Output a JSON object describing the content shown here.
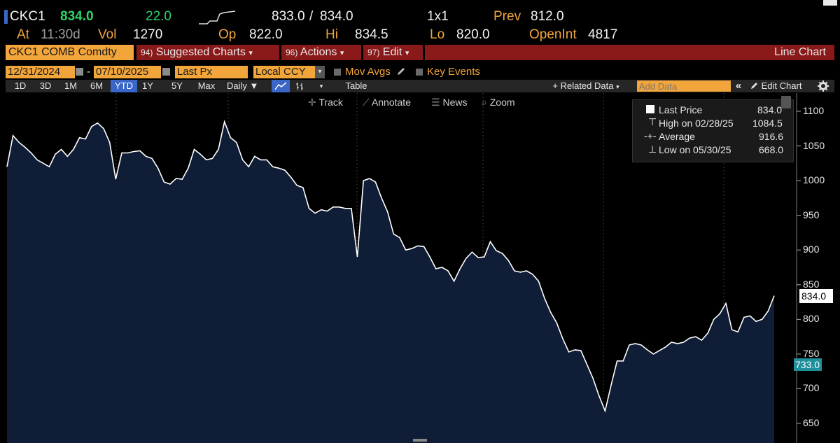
{
  "ticker": {
    "symbol": "CKC1",
    "last": "834.0",
    "change": "22.0",
    "bid_ask_bid": "833.0",
    "bid_ask_sep": "/",
    "bid_ask_ask": "834.0",
    "size": "1x1",
    "prev_label": "Prev",
    "prev_value": "812.0",
    "at_label": "At",
    "at_time": "11:30d",
    "vol_label": "Vol",
    "vol_value": "1270",
    "op_label": "Op",
    "op_value": "822.0",
    "hi_label": "Hi",
    "hi_value": "834.5",
    "lo_label": "Lo",
    "lo_value": "820.0",
    "oi_label": "OpenInt",
    "oi_value": "4817"
  },
  "menubar": {
    "security": "CKC1 COMB Comdty",
    "suggested_num": "94)",
    "suggested": "Suggested Charts",
    "actions_num": "96)",
    "actions": "Actions",
    "edit_num": "97)",
    "edit": "Edit",
    "chart_type": "Line Chart",
    "caret": "▾"
  },
  "controls": {
    "start_date": "12/31/2024",
    "dash": "-",
    "end_date": "07/10/2025",
    "field": "Last Px",
    "currency": "Local CCY",
    "mov_avgs": "Mov Avgs",
    "key_events": "Key Events"
  },
  "periods": [
    "1D",
    "3D",
    "1M",
    "6M",
    "YTD",
    "1Y",
    "5Y",
    "Max"
  ],
  "active_period": "YTD",
  "toolbar2": {
    "frequency": "Daily",
    "table": "Table",
    "related": "+ Related Data",
    "add_data_placeholder": "Add Data",
    "edit_chart": "Edit Chart",
    "double_left": "«"
  },
  "chart_tools": {
    "track": "Track",
    "annotate": "Annotate",
    "news": "News",
    "zoom": "Zoom"
  },
  "legend": {
    "last_label": "Last Price",
    "last_value": "834.0",
    "high_label": "High on 02/28/25",
    "high_value": "1084.5",
    "avg_label": "Average",
    "avg_value": "916.6",
    "low_label": "Low on 05/30/25",
    "low_value": "668.0"
  },
  "badges": {
    "last": "834.0",
    "other": "733.0"
  },
  "colors": {
    "accent_orange": "#f2a53a",
    "change_green": "#2fd26a",
    "menu_red": "#8a1a1a",
    "area_fill": "#0f1d36",
    "line": "#ffffff",
    "badge_teal": "#1f8f9a"
  },
  "chart_data": {
    "type": "area",
    "title": "",
    "xlabel": "",
    "ylabel": "",
    "ylim": [
      630,
      1130
    ],
    "yticks": [
      650,
      700,
      750,
      800,
      850,
      900,
      950,
      1000,
      1050,
      1100
    ],
    "series": [
      {
        "name": "Last Price",
        "values": [
          1020,
          1065,
          1055,
          1048,
          1040,
          1030,
          1025,
          1020,
          1038,
          1045,
          1035,
          1045,
          1062,
          1060,
          1078,
          1083,
          1075,
          1055,
          1002,
          1040,
          1040,
          1042,
          1043,
          1035,
          1032,
          1018,
          998,
          995,
          1003,
          1002,
          1018,
          1045,
          1038,
          1030,
          1032,
          1045,
          1085,
          1062,
          1055,
          1030,
          1020,
          1035,
          1030,
          1030,
          1020,
          1018,
          1015,
          1005,
          993,
          990,
          960,
          953,
          958,
          956,
          962,
          962,
          960,
          960,
          890,
          1000,
          1003,
          998,
          975,
          955,
          923,
          918,
          900,
          902,
          906,
          905,
          890,
          873,
          875,
          870,
          855,
          873,
          888,
          897,
          889,
          890,
          912,
          899,
          895,
          885,
          870,
          868,
          870,
          865,
          855,
          830,
          810,
          795,
          772,
          753,
          756,
          755,
          735,
          715,
          690,
          668,
          705,
          740,
          740,
          763,
          765,
          763,
          756,
          750,
          755,
          760,
          767,
          765,
          767,
          773,
          775,
          770,
          780,
          800,
          808,
          823,
          785,
          782,
          803,
          805,
          797,
          800,
          812,
          834
        ]
      }
    ]
  }
}
